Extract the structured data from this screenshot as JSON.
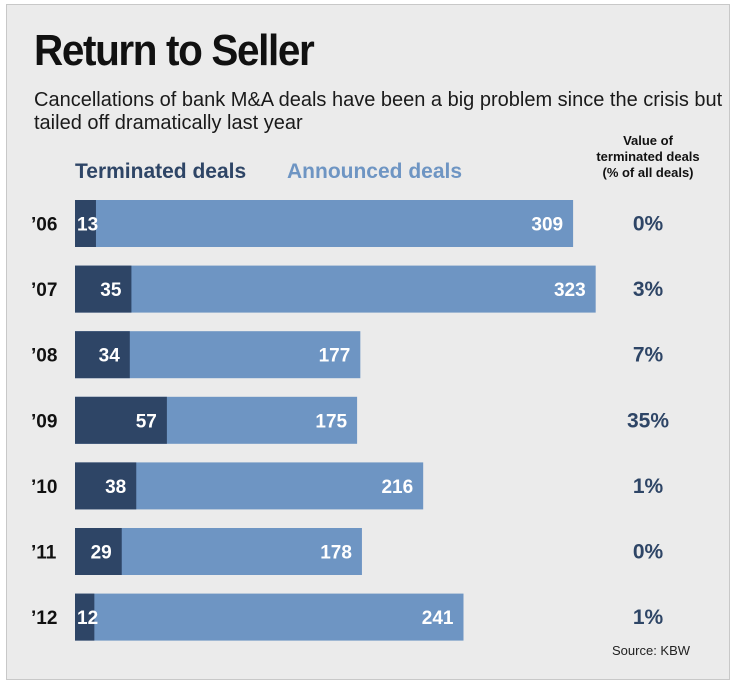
{
  "title": "Return to Seller",
  "subtitle": "Cancellations of bank M&A deals have been a big problem since the crisis but tailed off dramatically last year",
  "colors": {
    "terminated": "#2e4566",
    "announced": "#6e95c3",
    "background": "#ebebeb"
  },
  "chart_data": {
    "type": "bar",
    "orientation": "horizontal",
    "categories": [
      "’06",
      "’07",
      "’08",
      "’09",
      "’10",
      "’11",
      "’12"
    ],
    "series": [
      {
        "name": "Terminated deals",
        "values": [
          13,
          35,
          34,
          57,
          38,
          29,
          12
        ]
      },
      {
        "name": "Announced deals",
        "values": [
          309,
          323,
          177,
          175,
          216,
          178,
          241
        ]
      }
    ],
    "extra_column": {
      "header_lines": [
        "Value of",
        "terminated deals",
        "(% of all deals)"
      ],
      "values": [
        "0%",
        "3%",
        "7%",
        "35%",
        "1%",
        "0%",
        "1%"
      ]
    },
    "xlim": [
      0,
      323
    ],
    "source": "Source: KBW"
  }
}
